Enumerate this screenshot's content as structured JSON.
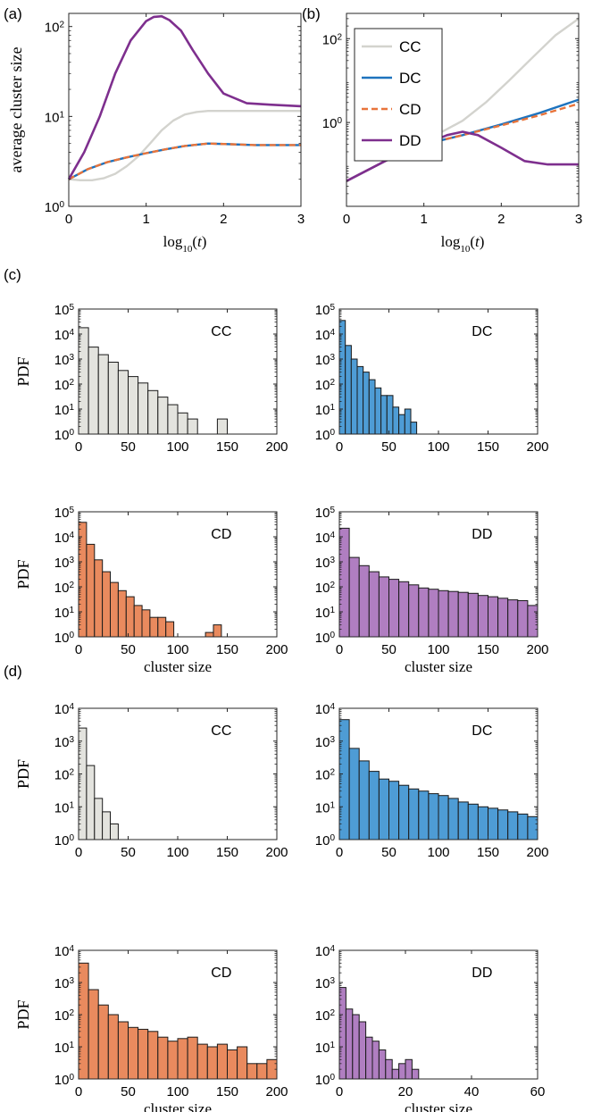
{
  "figure": {
    "panel_labels": [
      "(a)",
      "(b)",
      "(c)",
      "(d)"
    ]
  },
  "chart_data": [
    {
      "id": "a",
      "type": "line",
      "ylabel": "average cluster size",
      "xlabel": "log10(t)",
      "xlim": [
        0,
        3
      ],
      "ylim": [
        1,
        140
      ],
      "yscale": "log",
      "xticks": [
        0,
        1,
        2,
        3
      ],
      "yticks": [
        1,
        10,
        100
      ],
      "series": [
        {
          "name": "CC",
          "color": "#d3d3ce",
          "dash": "solid",
          "x": [
            0,
            0.15,
            0.3,
            0.45,
            0.6,
            0.75,
            0.9,
            1.05,
            1.2,
            1.35,
            1.5,
            1.65,
            1.8,
            2.0,
            2.5,
            3.0
          ],
          "y": [
            2,
            1.95,
            1.95,
            2.05,
            2.3,
            2.8,
            3.6,
            5,
            7,
            9,
            10.5,
            11.2,
            11.5,
            11.5,
            11.5,
            11.5
          ]
        },
        {
          "name": "DC",
          "color": "#1e73be",
          "dash": "solid",
          "x": [
            0,
            0.25,
            0.5,
            0.75,
            1.0,
            1.25,
            1.5,
            1.8,
            2.1,
            2.4,
            2.7,
            3.0
          ],
          "y": [
            2,
            2.6,
            3.1,
            3.5,
            3.9,
            4.3,
            4.7,
            5.0,
            4.9,
            4.8,
            4.8,
            4.8
          ]
        },
        {
          "name": "CD",
          "color": "#e8743b",
          "dash": "dashed",
          "x": [
            0,
            0.25,
            0.5,
            0.75,
            1.0,
            1.25,
            1.5,
            1.8,
            2.1,
            2.4,
            2.7,
            3.0
          ],
          "y": [
            2,
            2.6,
            3.1,
            3.5,
            3.9,
            4.3,
            4.7,
            5.0,
            4.9,
            4.8,
            4.8,
            4.8
          ]
        },
        {
          "name": "DD",
          "color": "#7e2f8e",
          "dash": "solid",
          "x": [
            0,
            0.2,
            0.4,
            0.6,
            0.8,
            1.0,
            1.1,
            1.2,
            1.3,
            1.45,
            1.6,
            1.8,
            2.0,
            2.3,
            2.6,
            3.0
          ],
          "y": [
            2,
            4,
            10,
            30,
            70,
            115,
            128,
            130,
            118,
            90,
            55,
            30,
            18,
            14,
            13.5,
            13
          ]
        }
      ]
    },
    {
      "id": "b",
      "type": "line",
      "xlabel": "log10(t)",
      "xlim": [
        0,
        3
      ],
      "ylim": [
        0.01,
        400
      ],
      "yscale": "log",
      "xticks": [
        0,
        1,
        2,
        3
      ],
      "yticks": [
        1,
        100
      ],
      "legend": "top-left",
      "series": [
        {
          "name": "CC",
          "color": "#d3d3ce",
          "dash": "solid",
          "x": [
            0,
            0.5,
            1.0,
            1.5,
            1.8,
            2.1,
            2.4,
            2.7,
            3.0
          ],
          "y": [
            0.04,
            0.12,
            0.35,
            1.1,
            3,
            10,
            35,
            120,
            300
          ]
        },
        {
          "name": "DC",
          "color": "#1e73be",
          "dash": "solid",
          "x": [
            0,
            0.5,
            1.0,
            1.5,
            2.0,
            2.5,
            3.0
          ],
          "y": [
            0.04,
            0.12,
            0.3,
            0.5,
            0.9,
            1.7,
            3.5
          ]
        },
        {
          "name": "CD",
          "color": "#e8743b",
          "dash": "dashed",
          "x": [
            0,
            0.5,
            1.0,
            1.5,
            2.0,
            2.5,
            3.0
          ],
          "y": [
            0.04,
            0.12,
            0.3,
            0.5,
            0.85,
            1.5,
            2.8
          ]
        },
        {
          "name": "DD",
          "color": "#7e2f8e",
          "dash": "solid",
          "x": [
            0,
            0.5,
            1.0,
            1.3,
            1.5,
            1.7,
            2.0,
            2.3,
            2.6,
            3.0
          ],
          "y": [
            0.04,
            0.12,
            0.3,
            0.5,
            0.6,
            0.5,
            0.25,
            0.12,
            0.1,
            0.1
          ]
        }
      ]
    },
    {
      "id": "c-cc",
      "type": "bar",
      "label": "CC",
      "color": "#e3e3de",
      "ylabel": "PDF",
      "xlabel": "",
      "yscale": "log",
      "xlim": [
        0,
        200
      ],
      "ylim": [
        1,
        100000
      ],
      "xticks": [
        0,
        50,
        100,
        150,
        200
      ],
      "yticks": [
        1,
        10,
        100,
        1000,
        10000,
        100000
      ],
      "bin_width": 10,
      "values": [
        18000,
        3000,
        1500,
        750,
        350,
        200,
        110,
        55,
        30,
        15,
        7,
        4,
        0,
        0,
        4
      ]
    },
    {
      "id": "c-dc",
      "type": "bar",
      "label": "DC",
      "color": "#4e9cd5",
      "xlabel": "",
      "yscale": "log",
      "xlim": [
        0,
        200
      ],
      "ylim": [
        1,
        100000
      ],
      "xticks": [
        0,
        50,
        100,
        150,
        200
      ],
      "yticks": [
        1,
        10,
        100,
        1000,
        10000,
        100000
      ],
      "bin_width": 6,
      "values": [
        35000,
        3500,
        1000,
        500,
        300,
        150,
        70,
        35,
        35,
        12,
        6,
        10,
        3,
        0,
        0,
        0,
        0,
        0,
        0,
        0
      ]
    },
    {
      "id": "c-cd",
      "type": "bar",
      "label": "CD",
      "color": "#e98a5e",
      "ylabel": "PDF",
      "xlabel": "cluster size",
      "yscale": "log",
      "xlim": [
        0,
        200
      ],
      "ylim": [
        1,
        100000
      ],
      "xticks": [
        0,
        50,
        100,
        150,
        200
      ],
      "yticks": [
        1,
        10,
        100,
        1000,
        10000,
        100000
      ],
      "bin_width": 8,
      "values": [
        38000,
        5000,
        1200,
        400,
        150,
        70,
        40,
        18,
        12,
        6,
        6,
        4,
        0,
        0,
        0,
        0,
        1.5,
        3
      ]
    },
    {
      "id": "c-dd",
      "type": "bar",
      "label": "DD",
      "color": "#b07ec1",
      "xlabel": "cluster size",
      "yscale": "log",
      "xlim": [
        0,
        200
      ],
      "ylim": [
        1,
        100000
      ],
      "xticks": [
        0,
        50,
        100,
        150,
        200
      ],
      "yticks": [
        1,
        10,
        100,
        1000,
        10000,
        100000
      ],
      "bin_width": 10,
      "values": [
        22000,
        1500,
        700,
        400,
        250,
        200,
        160,
        120,
        90,
        80,
        70,
        65,
        60,
        55,
        45,
        40,
        35,
        30,
        28,
        18
      ]
    },
    {
      "id": "d-cc",
      "type": "bar",
      "label": "CC",
      "color": "#e3e3de",
      "ylabel": "PDF",
      "xlabel": "",
      "yscale": "log",
      "xlim": [
        0,
        200
      ],
      "ylim": [
        1,
        10000
      ],
      "xticks": [
        0,
        50,
        100,
        150,
        200
      ],
      "yticks": [
        1,
        10,
        100,
        1000,
        10000
      ],
      "bin_width": 8,
      "values": [
        2500,
        180,
        18,
        7,
        3,
        1,
        0.8
      ]
    },
    {
      "id": "d-dc",
      "type": "bar",
      "label": "DC",
      "color": "#4e9cd5",
      "xlabel": "",
      "yscale": "log",
      "xlim": [
        0,
        200
      ],
      "ylim": [
        1,
        10000
      ],
      "xticks": [
        0,
        50,
        100,
        150,
        200
      ],
      "yticks": [
        1,
        10,
        100,
        1000,
        10000
      ],
      "bin_width": 10,
      "values": [
        4500,
        600,
        250,
        120,
        70,
        60,
        45,
        35,
        30,
        25,
        22,
        18,
        14,
        12,
        10,
        9,
        8,
        7,
        6,
        5
      ]
    },
    {
      "id": "d-cd",
      "type": "bar",
      "label": "CD",
      "color": "#e98a5e",
      "ylabel": "PDF",
      "xlabel": "cluster size",
      "yscale": "log",
      "xlim": [
        0,
        200
      ],
      "ylim": [
        1,
        10000
      ],
      "xticks": [
        0,
        50,
        100,
        150,
        200
      ],
      "yticks": [
        1,
        10,
        100,
        1000,
        10000
      ],
      "bin_width": 10,
      "values": [
        4000,
        600,
        200,
        100,
        60,
        40,
        35,
        30,
        20,
        15,
        18,
        20,
        12,
        10,
        12,
        8,
        10,
        3,
        3,
        4
      ]
    },
    {
      "id": "d-dd",
      "type": "bar",
      "label": "DD",
      "color": "#b07ec1",
      "xlabel": "cluster size",
      "yscale": "log",
      "xlim": [
        0,
        60
      ],
      "ylim": [
        1,
        10000
      ],
      "xticks": [
        0,
        20,
        40,
        60
      ],
      "yticks": [
        1,
        10,
        100,
        1000,
        10000
      ],
      "bin_width": 2,
      "values": [
        700,
        150,
        100,
        60,
        20,
        15,
        8,
        4,
        2,
        3,
        4,
        2,
        0,
        0
      ]
    }
  ]
}
